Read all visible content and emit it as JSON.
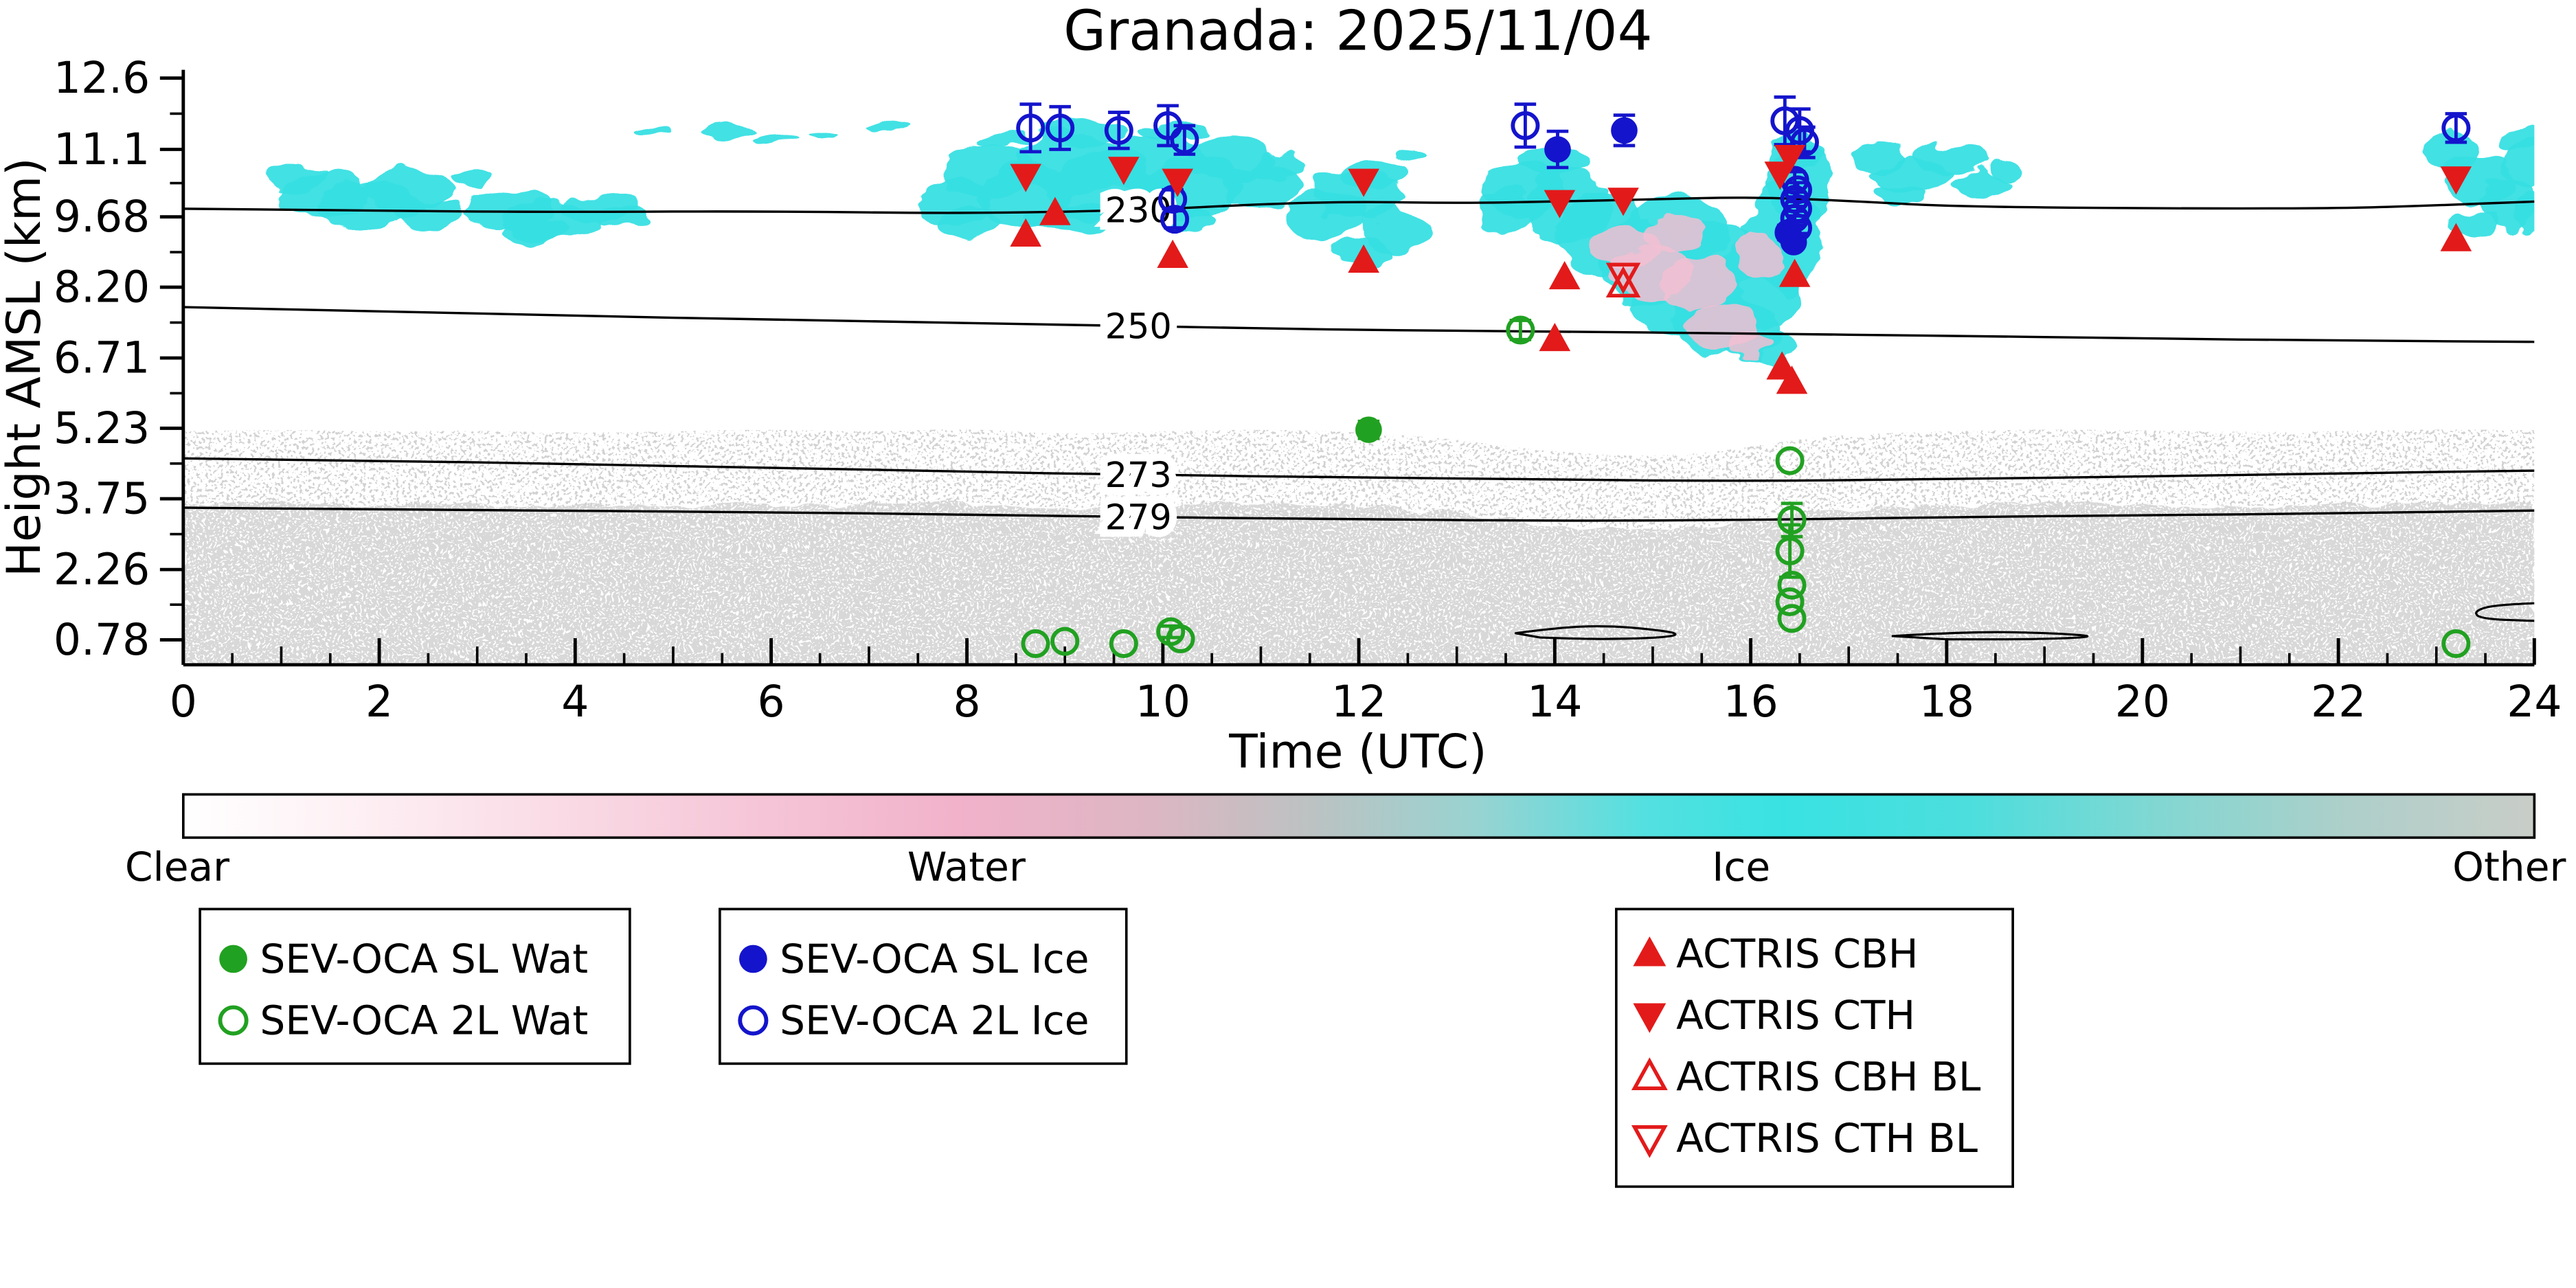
{
  "colors": {
    "green": "#21a121",
    "blue": "#1414cc",
    "red": "#e31a1a",
    "ice": "#35dfe2",
    "water_pink": "#f1c0d2",
    "aerosol_gray": "#d6d6d6"
  },
  "chart_data": {
    "type": "time-height-classification",
    "title": "Granada: 2025/11/04",
    "xlabel": "Time (UTC)",
    "ylabel": "Height AMSL (km)",
    "xlim": [
      0,
      24
    ],
    "ylim_km": [
      0.25,
      12.85
    ],
    "grid": false,
    "xticks_major": [
      0,
      2,
      4,
      6,
      8,
      10,
      12,
      14,
      16,
      18,
      20,
      22,
      24
    ],
    "xtick_labels": [
      "0",
      "2",
      "4",
      "6",
      "8",
      "10",
      "12",
      "14",
      "16",
      "18",
      "20",
      "22",
      "24"
    ],
    "yticks": {
      "values": [
        0.78,
        2.26,
        3.75,
        5.23,
        6.71,
        8.2,
        9.68,
        11.1,
        12.6
      ],
      "labels": [
        "0.78",
        "2.26",
        "3.75",
        "5.23",
        "6.71",
        "8.20",
        "9.68",
        "11.1",
        "12.6"
      ]
    },
    "classification_colorbar": {
      "labels": [
        "Clear",
        "Water",
        "Ice",
        "Other"
      ],
      "stops": [
        [
          0,
          "#ffffff"
        ],
        [
          0.06,
          "#fef3f6"
        ],
        [
          0.15,
          "#fadde7"
        ],
        [
          0.25,
          "#f5c4d6"
        ],
        [
          0.33,
          "#f1b2ca"
        ],
        [
          0.41,
          "#ddb6c3"
        ],
        [
          0.48,
          "#bcc2c2"
        ],
        [
          0.55,
          "#98d3d1"
        ],
        [
          0.62,
          "#55e0e0"
        ],
        [
          0.68,
          "#39e2e2"
        ],
        [
          0.76,
          "#4cdedd"
        ],
        [
          0.84,
          "#82d7d2"
        ],
        [
          0.92,
          "#aecfca"
        ],
        [
          1,
          "#c9cdc8"
        ]
      ]
    },
    "isotherm_contours": [
      {
        "label": "230",
        "label_t": 9.75,
        "points": [
          [
            0,
            9.85
          ],
          [
            2,
            9.8
          ],
          [
            4,
            9.78
          ],
          [
            6,
            9.8
          ],
          [
            8,
            9.75
          ],
          [
            9.75,
            9.82
          ],
          [
            11,
            9.95
          ],
          [
            12,
            10.0
          ],
          [
            13,
            9.97
          ],
          [
            14,
            10.0
          ],
          [
            15,
            10.05
          ],
          [
            16,
            10.1
          ],
          [
            17,
            10.02
          ],
          [
            18,
            9.9
          ],
          [
            20,
            9.86
          ],
          [
            22,
            9.86
          ],
          [
            23,
            9.92
          ],
          [
            24,
            10.0
          ]
        ]
      },
      {
        "label": "250",
        "label_t": 9.75,
        "points": [
          [
            0,
            7.78
          ],
          [
            2,
            7.7
          ],
          [
            4,
            7.6
          ],
          [
            6,
            7.52
          ],
          [
            8,
            7.45
          ],
          [
            9.75,
            7.38
          ],
          [
            12,
            7.3
          ],
          [
            14,
            7.27
          ],
          [
            16,
            7.22
          ],
          [
            18,
            7.18
          ],
          [
            20,
            7.12
          ],
          [
            22,
            7.08
          ],
          [
            24,
            7.05
          ]
        ]
      },
      {
        "label": "273",
        "label_t": 9.75,
        "points": [
          [
            0,
            4.6
          ],
          [
            2,
            4.55
          ],
          [
            4,
            4.48
          ],
          [
            6,
            4.4
          ],
          [
            8,
            4.32
          ],
          [
            9.75,
            4.25
          ],
          [
            12,
            4.2
          ],
          [
            14,
            4.15
          ],
          [
            16,
            4.12
          ],
          [
            18,
            4.16
          ],
          [
            20,
            4.22
          ],
          [
            22,
            4.28
          ],
          [
            24,
            4.34
          ]
        ]
      },
      {
        "label": "279",
        "label_t": 9.75,
        "points": [
          [
            0,
            3.56
          ],
          [
            2,
            3.52
          ],
          [
            4,
            3.5
          ],
          [
            6,
            3.46
          ],
          [
            8,
            3.42
          ],
          [
            9.75,
            3.36
          ],
          [
            12,
            3.32
          ],
          [
            14,
            3.28
          ],
          [
            16,
            3.3
          ],
          [
            18,
            3.36
          ],
          [
            20,
            3.4
          ],
          [
            22,
            3.44
          ],
          [
            24,
            3.5
          ]
        ]
      }
    ],
    "surface_contours": [
      {
        "closed": true,
        "points": [
          [
            13.6,
            0.92
          ],
          [
            14.0,
            1.03
          ],
          [
            14.5,
            1.08
          ],
          [
            15.0,
            1.0
          ],
          [
            15.3,
            0.9
          ],
          [
            15.05,
            0.82
          ],
          [
            14.4,
            0.79
          ],
          [
            13.85,
            0.83
          ]
        ]
      },
      {
        "closed": true,
        "points": [
          [
            17.45,
            0.86
          ],
          [
            18.2,
            0.95
          ],
          [
            19.0,
            0.93
          ],
          [
            19.6,
            0.85
          ],
          [
            18.9,
            0.79
          ],
          [
            18.0,
            0.79
          ]
        ]
      },
      {
        "closed": false,
        "points": [
          [
            24,
            1.55
          ],
          [
            23.6,
            1.52
          ],
          [
            23.38,
            1.38
          ],
          [
            23.45,
            1.22
          ],
          [
            24,
            1.18
          ]
        ]
      }
    ],
    "aerosol_band_top": [
      [
        0,
        3.62
      ],
      [
        1,
        3.66
      ],
      [
        2,
        3.6
      ],
      [
        3,
        3.64
      ],
      [
        4,
        3.58
      ],
      [
        5,
        3.62
      ],
      [
        6,
        3.66
      ],
      [
        7,
        3.6
      ],
      [
        8,
        3.68
      ],
      [
        9,
        3.55
      ],
      [
        10,
        3.62
      ],
      [
        11,
        3.66
      ],
      [
        12,
        3.6
      ],
      [
        13,
        3.45
      ],
      [
        13.5,
        3.3
      ],
      [
        14,
        3.2
      ],
      [
        14.5,
        3.12
      ],
      [
        15,
        3.1
      ],
      [
        15.5,
        3.15
      ],
      [
        16,
        3.3
      ],
      [
        16.5,
        3.45
      ],
      [
        17,
        3.55
      ],
      [
        18,
        3.62
      ],
      [
        19,
        3.66
      ],
      [
        20,
        3.64
      ],
      [
        21,
        3.6
      ],
      [
        22,
        3.62
      ],
      [
        23,
        3.66
      ],
      [
        24,
        3.64
      ]
    ],
    "ice_cloud_blobs": [
      [
        1.15,
        10.5,
        0.3,
        0.35
      ],
      [
        1.45,
        10.15,
        0.45,
        0.45
      ],
      [
        1.9,
        9.9,
        0.55,
        0.5
      ],
      [
        2.3,
        10.25,
        0.45,
        0.4
      ],
      [
        2.5,
        9.7,
        0.35,
        0.3
      ],
      [
        2.95,
        10.5,
        0.2,
        0.18
      ],
      [
        3.3,
        9.85,
        0.45,
        0.4
      ],
      [
        3.8,
        9.6,
        0.55,
        0.45
      ],
      [
        4.25,
        9.9,
        0.4,
        0.3
      ],
      [
        3.6,
        9.35,
        0.35,
        0.25
      ],
      [
        4.5,
        9.7,
        0.25,
        0.2
      ],
      [
        4.8,
        11.5,
        0.18,
        0.1
      ],
      [
        5.55,
        11.45,
        0.28,
        0.12
      ],
      [
        6.05,
        11.3,
        0.2,
        0.1
      ],
      [
        6.55,
        11.5,
        0.15,
        0.08
      ],
      [
        7.2,
        11.55,
        0.22,
        0.1
      ],
      [
        7.85,
        10.0,
        0.4,
        0.5
      ],
      [
        8.2,
        10.6,
        0.45,
        0.6
      ],
      [
        8.6,
        10.1,
        0.5,
        0.7
      ],
      [
        9.0,
        10.8,
        0.55,
        0.65
      ],
      [
        9.4,
        10.3,
        0.55,
        0.75
      ],
      [
        9.9,
        10.8,
        0.5,
        0.6
      ],
      [
        10.3,
        10.3,
        0.5,
        0.65
      ],
      [
        10.7,
        10.9,
        0.45,
        0.5
      ],
      [
        11.0,
        10.3,
        0.4,
        0.45
      ],
      [
        9.2,
        11.45,
        0.4,
        0.25
      ],
      [
        10.1,
        11.5,
        0.35,
        0.2
      ],
      [
        8.35,
        11.3,
        0.25,
        0.15
      ],
      [
        8.0,
        9.55,
        0.35,
        0.3
      ],
      [
        9.1,
        9.6,
        0.45,
        0.3
      ],
      [
        10.2,
        9.6,
        0.4,
        0.3
      ],
      [
        11.2,
        10.7,
        0.3,
        0.35
      ],
      [
        11.65,
        9.7,
        0.4,
        0.5
      ],
      [
        12.0,
        10.1,
        0.45,
        0.55
      ],
      [
        12.35,
        9.4,
        0.35,
        0.45
      ],
      [
        12.15,
        10.6,
        0.3,
        0.3
      ],
      [
        12.0,
        8.95,
        0.3,
        0.22
      ],
      [
        12.5,
        11.05,
        0.18,
        0.15
      ],
      [
        13.7,
        10.3,
        0.4,
        0.6
      ],
      [
        14.0,
        10.9,
        0.35,
        0.4
      ],
      [
        14.15,
        9.9,
        0.45,
        0.8
      ],
      [
        14.5,
        9.3,
        0.45,
        0.9
      ],
      [
        14.9,
        8.7,
        0.45,
        0.95
      ],
      [
        15.25,
        8.1,
        0.45,
        0.95
      ],
      [
        15.6,
        7.6,
        0.4,
        0.85
      ],
      [
        15.95,
        7.2,
        0.35,
        0.6
      ],
      [
        15.3,
        9.4,
        0.55,
        0.75
      ],
      [
        15.7,
        8.9,
        0.5,
        0.7
      ],
      [
        16.1,
        8.3,
        0.4,
        1.0
      ],
      [
        16.35,
        9.3,
        0.35,
        1.2
      ],
      [
        16.5,
        10.4,
        0.3,
        0.9
      ],
      [
        16.45,
        11.05,
        0.28,
        0.35
      ],
      [
        13.55,
        9.8,
        0.3,
        0.45
      ],
      [
        16.2,
        6.9,
        0.25,
        0.35
      ],
      [
        17.3,
        10.95,
        0.3,
        0.3
      ],
      [
        17.65,
        10.55,
        0.4,
        0.35
      ],
      [
        18.05,
        10.9,
        0.35,
        0.3
      ],
      [
        18.35,
        10.35,
        0.28,
        0.28
      ],
      [
        17.5,
        10.15,
        0.28,
        0.22
      ],
      [
        18.6,
        10.7,
        0.2,
        0.2
      ],
      [
        23.15,
        11.05,
        0.25,
        0.45
      ],
      [
        23.45,
        10.5,
        0.35,
        0.6
      ],
      [
        23.75,
        10.0,
        0.3,
        0.55
      ],
      [
        23.95,
        10.8,
        0.28,
        0.5
      ],
      [
        23.35,
        9.55,
        0.28,
        0.25
      ],
      [
        23.9,
        11.35,
        0.22,
        0.25
      ],
      [
        24.0,
        9.8,
        0.2,
        0.4
      ]
    ],
    "water_tinge_blobs": [
      [
        15.0,
        8.5,
        0.45,
        0.6
      ],
      [
        15.45,
        8.25,
        0.4,
        0.55
      ],
      [
        14.75,
        9.1,
        0.35,
        0.4
      ],
      [
        16.1,
        8.9,
        0.22,
        0.5
      ],
      [
        15.7,
        7.35,
        0.35,
        0.45
      ],
      [
        15.95,
        6.95,
        0.25,
        0.3
      ],
      [
        15.2,
        9.3,
        0.3,
        0.35
      ]
    ],
    "series": [
      {
        "id": "sl_wat",
        "name": "SEV-OCA SL Wat",
        "marker": "circle",
        "fill": "filled",
        "color_key": "green",
        "points": [
          [
            12.1,
            5.2,
            0.18
          ]
        ]
      },
      {
        "id": "tl_wat",
        "name": "SEV-OCA 2L Wat",
        "marker": "circle",
        "fill": "open",
        "color_key": "green",
        "points": [
          [
            8.7,
            0.7,
            0
          ],
          [
            9.0,
            0.75,
            0
          ],
          [
            9.6,
            0.7,
            0
          ],
          [
            10.08,
            0.95,
            0.12
          ],
          [
            10.18,
            0.8,
            0
          ],
          [
            13.65,
            7.3,
            0.2
          ],
          [
            16.4,
            4.55,
            0
          ],
          [
            16.42,
            3.3,
            0.35
          ],
          [
            16.4,
            2.65,
            0.55
          ],
          [
            16.42,
            1.93,
            0
          ],
          [
            16.4,
            1.58,
            0
          ],
          [
            16.42,
            1.23,
            0
          ],
          [
            23.2,
            0.7,
            0
          ]
        ]
      },
      {
        "id": "sl_ice",
        "name": "SEV-OCA SL Ice",
        "marker": "circle",
        "fill": "filled",
        "color_key": "blue",
        "points": [
          [
            14.03,
            11.1,
            0.38
          ],
          [
            14.71,
            11.5,
            0.32
          ],
          [
            16.38,
            9.35,
            0.15
          ],
          [
            16.44,
            9.15,
            0.12
          ]
        ]
      },
      {
        "id": "tl_ice",
        "name": "SEV-OCA 2L Ice",
        "marker": "circle",
        "fill": "open",
        "color_key": "blue",
        "points": [
          [
            8.65,
            11.55,
            0.5
          ],
          [
            8.95,
            11.55,
            0.45
          ],
          [
            9.55,
            11.5,
            0.38
          ],
          [
            10.05,
            11.6,
            0.42
          ],
          [
            10.22,
            11.3,
            0.3
          ],
          [
            10.1,
            10.05,
            0.2
          ],
          [
            10.12,
            9.63,
            0.18
          ],
          [
            13.7,
            11.6,
            0.45
          ],
          [
            16.35,
            11.7,
            0.5
          ],
          [
            16.5,
            11.5,
            0.45
          ],
          [
            16.55,
            11.25,
            0.32
          ],
          [
            16.45,
            10.45,
            0.18
          ],
          [
            16.48,
            10.25,
            0.15
          ],
          [
            16.45,
            10.05,
            0.15
          ],
          [
            16.48,
            9.85,
            0.15
          ],
          [
            16.45,
            9.65,
            0.15
          ],
          [
            16.48,
            9.45,
            0.12
          ],
          [
            23.2,
            11.55,
            0.3
          ]
        ]
      },
      {
        "id": "cbh",
        "name": "ACTRIS CBH",
        "marker": "triangle-up",
        "fill": "filled",
        "color_key": "red",
        "points": [
          [
            8.6,
            9.3
          ],
          [
            8.9,
            9.75
          ],
          [
            10.1,
            8.85
          ],
          [
            12.05,
            8.75
          ],
          [
            14.0,
            7.1
          ],
          [
            14.1,
            8.4
          ],
          [
            16.45,
            8.45
          ],
          [
            16.32,
            6.5
          ],
          [
            16.42,
            6.2
          ],
          [
            23.2,
            9.2
          ]
        ]
      },
      {
        "id": "cth",
        "name": "ACTRIS CTH",
        "marker": "triangle-down",
        "fill": "filled",
        "color_key": "red",
        "points": [
          [
            8.6,
            10.55
          ],
          [
            9.6,
            10.7
          ],
          [
            10.15,
            10.45
          ],
          [
            12.05,
            10.45
          ],
          [
            14.05,
            10.0
          ],
          [
            14.7,
            10.05
          ],
          [
            16.3,
            10.6
          ],
          [
            16.4,
            10.95
          ],
          [
            23.2,
            10.5
          ]
        ]
      },
      {
        "id": "cbh_bl",
        "name": "ACTRIS CBH BL",
        "marker": "triangle-up",
        "fill": "open",
        "color_key": "red",
        "points": [
          [
            14.7,
            8.25
          ]
        ]
      },
      {
        "id": "cth_bl",
        "name": "ACTRIS CTH BL",
        "marker": "triangle-down",
        "fill": "open",
        "color_key": "red",
        "points": [
          [
            14.7,
            8.45
          ]
        ]
      }
    ],
    "legend_boxes": [
      {
        "items": [
          "sl_wat",
          "tl_wat"
        ]
      },
      {
        "items": [
          "sl_ice",
          "tl_ice"
        ]
      },
      {
        "items": [
          "cbh",
          "cth",
          "cbh_bl",
          "cth_bl"
        ]
      }
    ]
  }
}
